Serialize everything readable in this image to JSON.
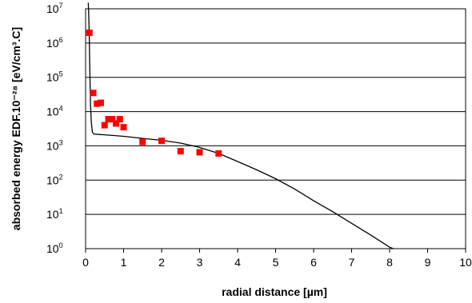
{
  "chart_data": {
    "type": "scatter",
    "xlabel": "radial distance [µm]",
    "ylabel": "absorbed energy EDF.10⁻²⁸ [eV/cm³.C]",
    "xlim": [
      0,
      10
    ],
    "ylim": [
      1,
      10000000
    ],
    "yscale": "log",
    "grid": "horizontal",
    "x_ticks": [
      "0",
      "1",
      "2",
      "3",
      "4",
      "5",
      "6",
      "7",
      "8",
      "9",
      "10"
    ],
    "y_ticks": [
      {
        "base": "10",
        "exp": "0"
      },
      {
        "base": "10",
        "exp": "1"
      },
      {
        "base": "10",
        "exp": "2"
      },
      {
        "base": "10",
        "exp": "3"
      },
      {
        "base": "10",
        "exp": "4"
      },
      {
        "base": "10",
        "exp": "5"
      },
      {
        "base": "10",
        "exp": "6"
      },
      {
        "base": "10",
        "exp": "7"
      }
    ],
    "series": [
      {
        "kind": "line",
        "color": "#000000",
        "x": [
          0.07,
          0.08,
          0.09,
          0.1,
          0.11,
          0.12,
          0.13,
          0.15,
          0.18,
          0.22,
          0.5,
          1.0,
          1.5,
          2.0,
          2.5,
          3.0,
          3.5,
          4.0,
          4.5,
          5.0,
          5.5,
          6.0,
          6.5,
          7.0,
          7.5,
          8.0,
          8.1
        ],
        "y": [
          15000000,
          8000000,
          3000000,
          800000,
          200000,
          50000,
          15000,
          5000,
          2500,
          2200,
          2100,
          1900,
          1650,
          1450,
          1200,
          900,
          600,
          350,
          200,
          110,
          55,
          25,
          12,
          5.5,
          2.5,
          1.1,
          1.0
        ]
      },
      {
        "kind": "markers",
        "color": "#ff0000",
        "x": [
          0.1,
          0.2,
          0.3,
          0.4,
          0.5,
          0.6,
          0.7,
          0.8,
          0.9,
          1.0,
          1.5,
          2.0,
          2.5,
          3.0,
          3.5
        ],
        "y": [
          2000000,
          35000,
          17000,
          18000,
          4000,
          6000,
          6000,
          4500,
          6000,
          3500,
          1300,
          1400,
          700,
          650,
          600
        ]
      }
    ]
  }
}
